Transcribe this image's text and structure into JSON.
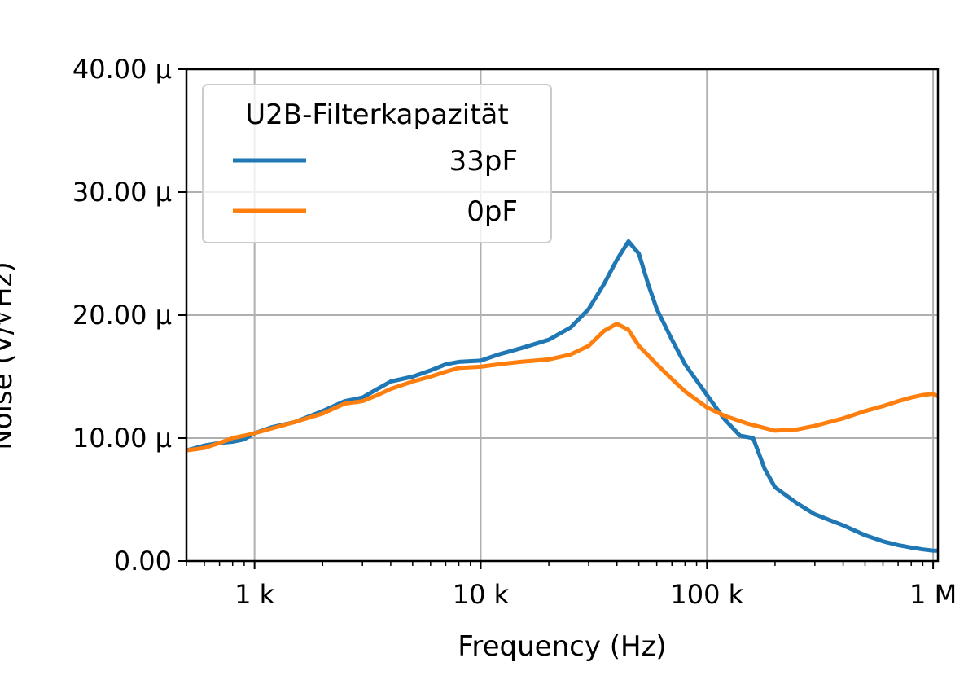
{
  "chart_data": {
    "type": "line",
    "xlabel": "Frequency (Hz)",
    "ylabel": "Noise (V/√Hz)",
    "x_scale": "log",
    "xlim": [
      500,
      1050000
    ],
    "ylim": [
      0,
      40
    ],
    "y_unit_suffix": "µ",
    "grid": true,
    "x_ticks": [
      {
        "value": 1000,
        "label": "1 k"
      },
      {
        "value": 10000,
        "label": "10 k"
      },
      {
        "value": 100000,
        "label": "100 k"
      },
      {
        "value": 1000000,
        "label": "1 M"
      }
    ],
    "y_ticks": [
      {
        "value": 0,
        "label": "0.00"
      },
      {
        "value": 10,
        "label": "10.00 µ"
      },
      {
        "value": 20,
        "label": "20.00 µ"
      },
      {
        "value": 30,
        "label": "30.00 µ"
      },
      {
        "value": 40,
        "label": "40.00 µ"
      }
    ],
    "legend": {
      "title": "U2B-Filterkapazität",
      "placement": "top-left"
    },
    "series": [
      {
        "name": "33pF",
        "color": "#1f77b4",
        "points": [
          [
            500,
            9.0
          ],
          [
            600,
            9.4
          ],
          [
            700,
            9.6
          ],
          [
            800,
            9.7
          ],
          [
            900,
            9.9
          ],
          [
            1000,
            10.4
          ],
          [
            1200,
            10.9
          ],
          [
            1500,
            11.3
          ],
          [
            2000,
            12.2
          ],
          [
            2500,
            13.0
          ],
          [
            3000,
            13.3
          ],
          [
            3500,
            14.0
          ],
          [
            4000,
            14.6
          ],
          [
            5000,
            15.0
          ],
          [
            6000,
            15.5
          ],
          [
            7000,
            16.0
          ],
          [
            8000,
            16.2
          ],
          [
            10000,
            16.3
          ],
          [
            12000,
            16.8
          ],
          [
            15000,
            17.3
          ],
          [
            20000,
            18.0
          ],
          [
            25000,
            19.0
          ],
          [
            30000,
            20.5
          ],
          [
            35000,
            22.5
          ],
          [
            40000,
            24.5
          ],
          [
            45000,
            26.0
          ],
          [
            50000,
            25.0
          ],
          [
            55000,
            22.5
          ],
          [
            60000,
            20.5
          ],
          [
            70000,
            18.0
          ],
          [
            80000,
            16.0
          ],
          [
            100000,
            13.5
          ],
          [
            120000,
            11.5
          ],
          [
            140000,
            10.2
          ],
          [
            160000,
            10.0
          ],
          [
            180000,
            7.5
          ],
          [
            200000,
            6.0
          ],
          [
            250000,
            4.7
          ],
          [
            300000,
            3.8
          ],
          [
            400000,
            2.9
          ],
          [
            500000,
            2.1
          ],
          [
            600000,
            1.6
          ],
          [
            700000,
            1.3
          ],
          [
            800000,
            1.1
          ],
          [
            900000,
            0.95
          ],
          [
            1000000,
            0.85
          ],
          [
            1050000,
            0.85
          ]
        ]
      },
      {
        "name": "0pF",
        "color": "#ff7f0e",
        "points": [
          [
            500,
            9.0
          ],
          [
            600,
            9.2
          ],
          [
            700,
            9.6
          ],
          [
            800,
            10.0
          ],
          [
            900,
            10.2
          ],
          [
            1000,
            10.4
          ],
          [
            1200,
            10.8
          ],
          [
            1500,
            11.3
          ],
          [
            2000,
            12.0
          ],
          [
            2500,
            12.8
          ],
          [
            3000,
            13.0
          ],
          [
            3500,
            13.5
          ],
          [
            4000,
            14.0
          ],
          [
            5000,
            14.6
          ],
          [
            6000,
            15.0
          ],
          [
            7000,
            15.4
          ],
          [
            8000,
            15.7
          ],
          [
            10000,
            15.8
          ],
          [
            12000,
            16.0
          ],
          [
            15000,
            16.2
          ],
          [
            20000,
            16.4
          ],
          [
            25000,
            16.8
          ],
          [
            30000,
            17.5
          ],
          [
            35000,
            18.7
          ],
          [
            40000,
            19.3
          ],
          [
            45000,
            18.8
          ],
          [
            50000,
            17.5
          ],
          [
            60000,
            16.0
          ],
          [
            70000,
            14.8
          ],
          [
            80000,
            13.8
          ],
          [
            100000,
            12.5
          ],
          [
            120000,
            11.8
          ],
          [
            150000,
            11.2
          ],
          [
            200000,
            10.6
          ],
          [
            250000,
            10.7
          ],
          [
            300000,
            11.0
          ],
          [
            400000,
            11.6
          ],
          [
            500000,
            12.2
          ],
          [
            600000,
            12.6
          ],
          [
            700000,
            13.0
          ],
          [
            800000,
            13.3
          ],
          [
            900000,
            13.5
          ],
          [
            1000000,
            13.6
          ],
          [
            1050000,
            13.4
          ]
        ]
      }
    ]
  }
}
